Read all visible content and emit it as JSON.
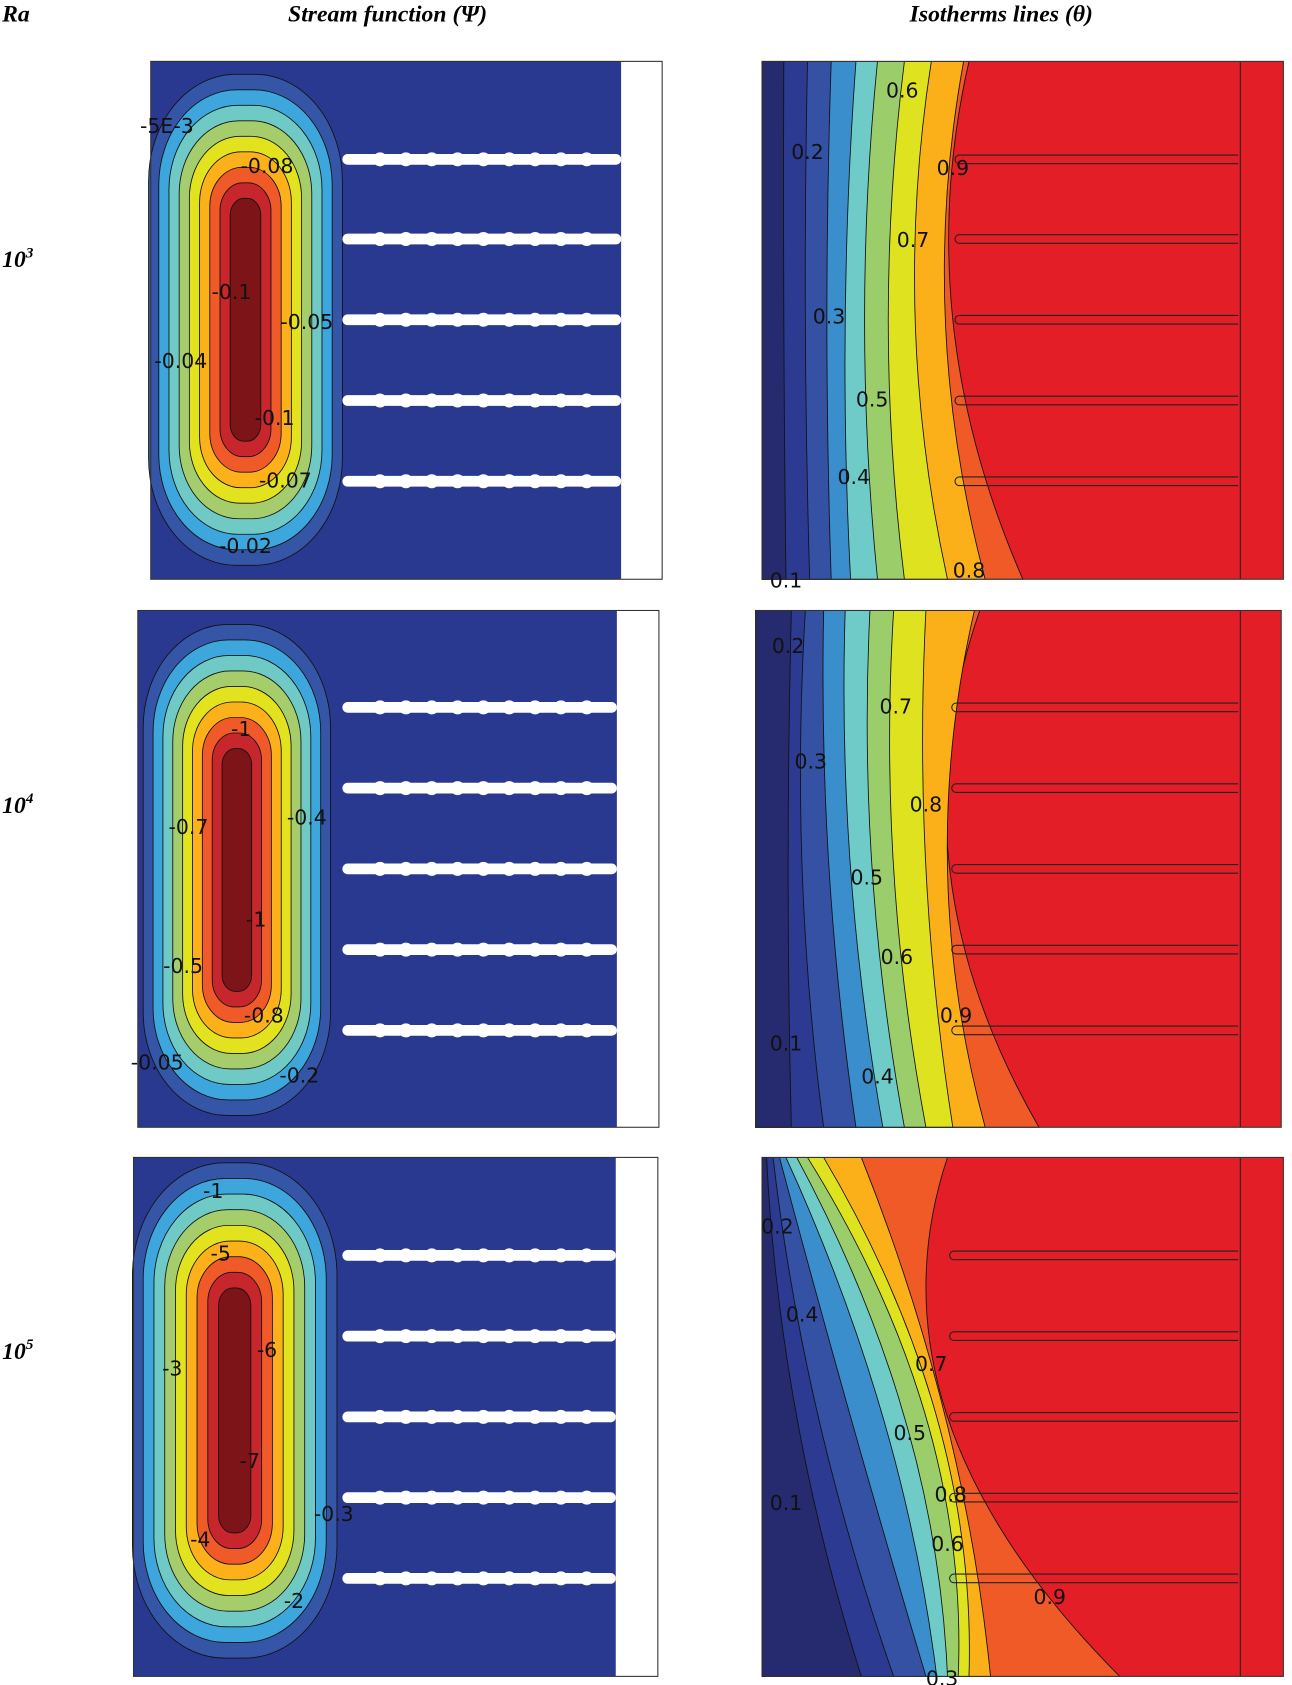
{
  "header": {
    "ra": "Ra",
    "stream_title": "Stream function (Ψ)",
    "isotherm_title": "Isotherms lines (θ)"
  },
  "rows": [
    {
      "ra_base": "10",
      "ra_exp": "3",
      "stream_labels": [
        "-5E-3",
        "-0.08",
        "-0.1",
        "-0.05",
        "-0.04",
        "-0.1",
        "-0.07",
        "-0.02"
      ],
      "isotherm_labels": [
        "0.6",
        "0.2",
        "0.9",
        "0.7",
        "0.3",
        "0.5",
        "0.4",
        "0.8",
        "0.1"
      ]
    },
    {
      "ra_base": "10",
      "ra_exp": "4",
      "stream_labels": [
        "-1",
        "-0.4",
        "-0.7",
        "-1",
        "-0.5",
        "-0.8",
        "-0.05",
        "-0.2"
      ],
      "isotherm_labels": [
        "0.2",
        "0.7",
        "0.3",
        "0.8",
        "0.5",
        "0.6",
        "0.9",
        "0.1",
        "0.4"
      ]
    },
    {
      "ra_base": "10",
      "ra_exp": "5",
      "stream_labels": [
        "-1",
        "-5",
        "-6",
        "-3",
        "-7",
        "-0.3",
        "-4",
        "-2"
      ],
      "isotherm_labels": [
        "0.2",
        "0.4",
        "0.7",
        "0.5",
        "0.1",
        "0.8",
        "0.6",
        "0.9",
        "0.3"
      ]
    }
  ]
}
